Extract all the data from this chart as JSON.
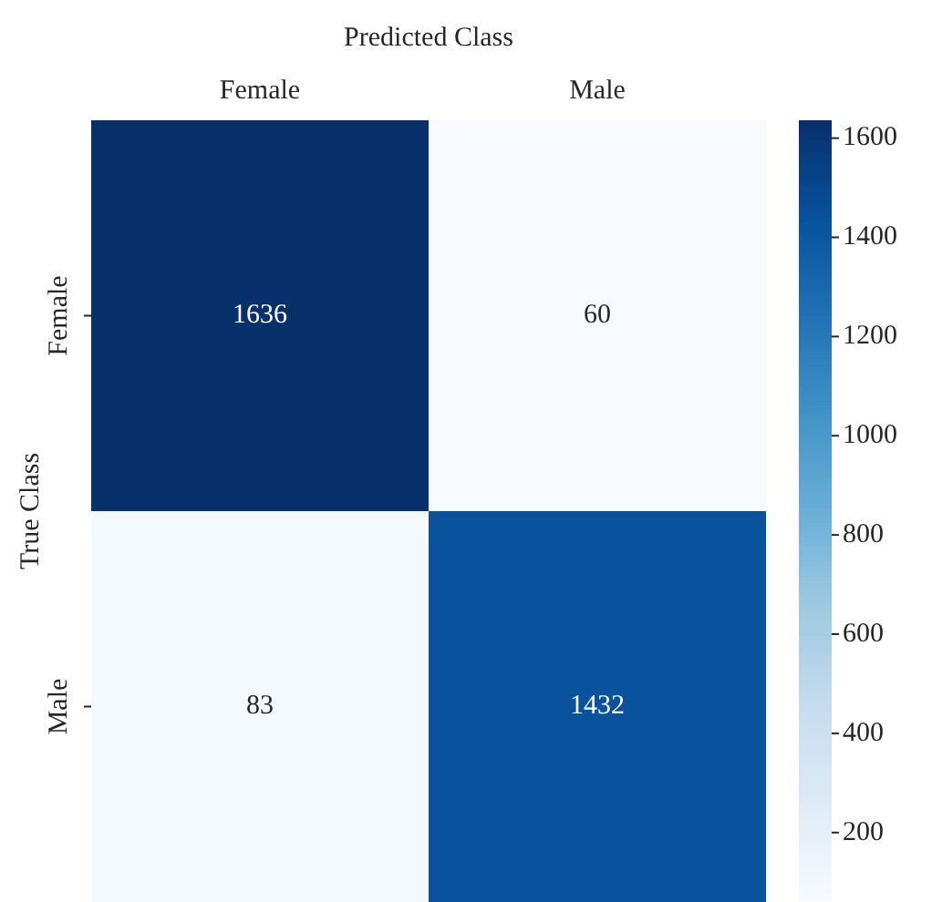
{
  "chart_data": {
    "type": "heatmap",
    "xlabel": "Predicted Class",
    "ylabel": "True Class",
    "categories": [
      "Female",
      "Male"
    ],
    "y_categories": [
      "Female",
      "Male"
    ],
    "cells": [
      [
        1636,
        60
      ],
      [
        83,
        1432
      ]
    ],
    "clim": [
      60,
      1636
    ],
    "cticks": [
      200,
      400,
      600,
      800,
      1000,
      1200,
      1400,
      1600
    ],
    "data_labels": true
  }
}
